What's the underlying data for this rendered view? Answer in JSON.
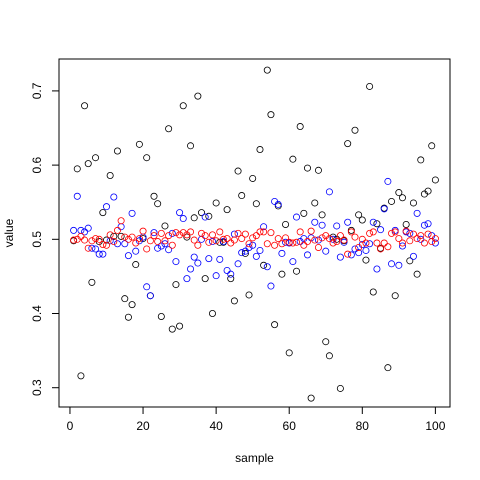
{
  "chart_data": {
    "type": "scatter",
    "title": "",
    "xlabel": "sample",
    "ylabel": "value",
    "xlim": [
      -3,
      104
    ],
    "ylim": [
      0.274,
      0.743
    ],
    "grid": false,
    "legend": "none",
    "x_ticks": [
      0,
      20,
      40,
      60,
      80,
      100
    ],
    "y_ticks": [
      0.3,
      0.4,
      0.5,
      0.6,
      0.7
    ],
    "x_tick_labels": [
      "0",
      "20",
      "40",
      "60",
      "80",
      "100"
    ],
    "y_tick_labels": [
      "0.3",
      "0.4",
      "0.5",
      "0.6",
      "0.7"
    ],
    "x": [
      1,
      2,
      3,
      4,
      5,
      6,
      7,
      8,
      9,
      10,
      11,
      12,
      13,
      14,
      15,
      16,
      17,
      18,
      19,
      20,
      21,
      22,
      23,
      24,
      25,
      26,
      27,
      28,
      29,
      30,
      31,
      32,
      33,
      34,
      35,
      36,
      37,
      38,
      39,
      40,
      41,
      42,
      43,
      44,
      45,
      46,
      47,
      48,
      49,
      50,
      51,
      52,
      53,
      54,
      55,
      56,
      57,
      58,
      59,
      60,
      61,
      62,
      63,
      64,
      65,
      66,
      67,
      68,
      69,
      70,
      71,
      72,
      73,
      74,
      75,
      76,
      77,
      78,
      79,
      80,
      81,
      82,
      83,
      84,
      85,
      86,
      87,
      88,
      89,
      90,
      91,
      92,
      93,
      94,
      95,
      96,
      97,
      98,
      99,
      100
    ],
    "series": [
      {
        "color": "#000000",
        "values": [
          0.498,
          0.595,
          0.316,
          0.68,
          0.602,
          0.442,
          0.61,
          0.497,
          0.536,
          0.499,
          0.586,
          0.504,
          0.619,
          0.504,
          0.42,
          0.395,
          0.412,
          0.466,
          0.628,
          0.501,
          0.61,
          0.424,
          0.558,
          0.548,
          0.396,
          0.518,
          0.649,
          0.379,
          0.439,
          0.383,
          0.68,
          0.503,
          0.626,
          0.529,
          0.693,
          0.536,
          0.447,
          0.531,
          0.4,
          0.549,
          0.496,
          0.496,
          0.54,
          0.447,
          0.417,
          0.592,
          0.559,
          0.481,
          0.425,
          0.582,
          0.548,
          0.621,
          0.465,
          0.728,
          0.668,
          0.385,
          0.545,
          0.453,
          0.52,
          0.347,
          0.608,
          0.457,
          0.652,
          0.535,
          0.596,
          0.286,
          0.549,
          0.593,
          0.533,
          0.362,
          0.343,
          0.503,
          0.5,
          0.299,
          0.498,
          0.629,
          0.512,
          0.647,
          0.533,
          0.526,
          0.472,
          0.706,
          0.429,
          0.521,
          0.488,
          0.542,
          0.327,
          0.551,
          0.424,
          0.563,
          0.556,
          0.52,
          0.471,
          0.549,
          0.453,
          0.607,
          0.561,
          0.565,
          0.626,
          0.58
        ]
      },
      {
        "color": "#0000ff",
        "values": [
          0.512,
          0.558,
          0.512,
          0.51,
          0.515,
          0.488,
          0.487,
          0.48,
          0.48,
          0.544,
          0.498,
          0.557,
          0.494,
          0.517,
          0.494,
          0.478,
          0.535,
          0.484,
          0.498,
          0.503,
          0.436,
          0.424,
          0.509,
          0.488,
          0.491,
          0.494,
          0.486,
          0.508,
          0.47,
          0.536,
          0.528,
          0.447,
          0.46,
          0.476,
          0.468,
          0.5,
          0.53,
          0.474,
          0.497,
          0.451,
          0.473,
          0.497,
          0.458,
          0.453,
          0.507,
          0.467,
          0.482,
          0.484,
          0.489,
          0.492,
          0.477,
          0.485,
          0.517,
          0.463,
          0.437,
          0.551,
          0.547,
          0.481,
          0.496,
          0.495,
          0.47,
          0.53,
          0.497,
          0.501,
          0.479,
          0.502,
          0.523,
          0.499,
          0.519,
          0.484,
          0.564,
          0.5,
          0.518,
          0.476,
          0.496,
          0.523,
          0.479,
          0.487,
          0.482,
          0.493,
          0.485,
          0.494,
          0.523,
          0.46,
          0.513,
          0.541,
          0.578,
          0.467,
          0.512,
          0.465,
          0.491,
          0.51,
          0.508,
          0.477,
          0.535,
          0.5,
          0.519,
          0.521,
          0.505,
          0.495
        ]
      },
      {
        "color": "#ff0000",
        "values": [
          0.499,
          0.5,
          0.504,
          0.499,
          0.488,
          0.498,
          0.501,
          0.5,
          0.493,
          0.492,
          0.506,
          0.497,
          0.512,
          0.525,
          0.503,
          0.5,
          0.503,
          0.495,
          0.501,
          0.511,
          0.487,
          0.498,
          0.505,
          0.497,
          0.508,
          0.498,
          0.505,
          0.492,
          0.509,
          0.506,
          0.509,
          0.506,
          0.51,
          0.499,
          0.492,
          0.508,
          0.505,
          0.496,
          0.506,
          0.498,
          0.51,
          0.5,
          0.501,
          0.495,
          0.499,
          0.508,
          0.501,
          0.507,
          0.494,
          0.502,
          0.505,
          0.51,
          0.51,
          0.494,
          0.509,
          0.492,
          0.501,
          0.494,
          0.502,
          0.496,
          0.495,
          0.496,
          0.51,
          0.492,
          0.497,
          0.511,
          0.499,
          0.489,
          0.502,
          0.505,
          0.501,
          0.495,
          0.497,
          0.505,
          0.499,
          0.48,
          0.51,
          0.503,
          0.489,
          0.5,
          0.495,
          0.508,
          0.51,
          0.495,
          0.487,
          0.495,
          0.49,
          0.508,
          0.51,
          0.501,
          0.495,
          0.511,
          0.498,
          0.507,
          0.501,
          0.505,
          0.495,
          0.507,
          0.497,
          0.501
        ]
      }
    ]
  }
}
